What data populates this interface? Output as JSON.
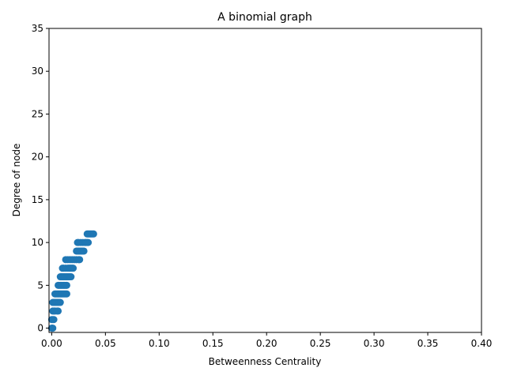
{
  "chart_data": {
    "type": "scatter",
    "title": "A binomial graph",
    "xlabel": "Betweenness Centrality",
    "ylabel": "Degree of node",
    "xlim": [
      -0.0025,
      0.4
    ],
    "ylim": [
      -0.5,
      35
    ],
    "xticks": [
      "0.00",
      "0.05",
      "0.10",
      "0.15",
      "0.20",
      "0.25",
      "0.30",
      "0.35",
      "0.40"
    ],
    "yticks": [
      "0",
      "5",
      "10",
      "15",
      "20",
      "25",
      "30",
      "35"
    ],
    "grid": false,
    "marker_color": "#1f77b4",
    "points": [
      [
        0.0,
        0
      ],
      [
        0.0005,
        0
      ],
      [
        0.001,
        0
      ],
      [
        0.0,
        1
      ],
      [
        0.001,
        1
      ],
      [
        0.002,
        1
      ],
      [
        0.001,
        2
      ],
      [
        0.002,
        2
      ],
      [
        0.003,
        2
      ],
      [
        0.005,
        2
      ],
      [
        0.006,
        2
      ],
      [
        0.001,
        3
      ],
      [
        0.002,
        3
      ],
      [
        0.003,
        3
      ],
      [
        0.004,
        3
      ],
      [
        0.005,
        3
      ],
      [
        0.006,
        3
      ],
      [
        0.007,
        3
      ],
      [
        0.008,
        3
      ],
      [
        0.003,
        4
      ],
      [
        0.004,
        4
      ],
      [
        0.005,
        4
      ],
      [
        0.006,
        4
      ],
      [
        0.007,
        4
      ],
      [
        0.008,
        4
      ],
      [
        0.009,
        4
      ],
      [
        0.01,
        4
      ],
      [
        0.011,
        4
      ],
      [
        0.012,
        4
      ],
      [
        0.013,
        4
      ],
      [
        0.014,
        4
      ],
      [
        0.006,
        5
      ],
      [
        0.007,
        5
      ],
      [
        0.008,
        5
      ],
      [
        0.009,
        5
      ],
      [
        0.01,
        5
      ],
      [
        0.011,
        5
      ],
      [
        0.012,
        5
      ],
      [
        0.013,
        5
      ],
      [
        0.014,
        5
      ],
      [
        0.008,
        6
      ],
      [
        0.009,
        6
      ],
      [
        0.01,
        6
      ],
      [
        0.011,
        6
      ],
      [
        0.012,
        6
      ],
      [
        0.013,
        6
      ],
      [
        0.014,
        6
      ],
      [
        0.015,
        6
      ],
      [
        0.016,
        6
      ],
      [
        0.017,
        6
      ],
      [
        0.018,
        6
      ],
      [
        0.01,
        7
      ],
      [
        0.011,
        7
      ],
      [
        0.013,
        7
      ],
      [
        0.015,
        7
      ],
      [
        0.016,
        7
      ],
      [
        0.017,
        7
      ],
      [
        0.018,
        7
      ],
      [
        0.019,
        7
      ],
      [
        0.02,
        7
      ],
      [
        0.013,
        8
      ],
      [
        0.015,
        8
      ],
      [
        0.017,
        8
      ],
      [
        0.019,
        8
      ],
      [
        0.021,
        8
      ],
      [
        0.023,
        8
      ],
      [
        0.025,
        8
      ],
      [
        0.026,
        8
      ],
      [
        0.023,
        9
      ],
      [
        0.024,
        9
      ],
      [
        0.025,
        9
      ],
      [
        0.026,
        9
      ],
      [
        0.027,
        9
      ],
      [
        0.028,
        9
      ],
      [
        0.029,
        9
      ],
      [
        0.03,
        9
      ],
      [
        0.024,
        10
      ],
      [
        0.025,
        10
      ],
      [
        0.027,
        10
      ],
      [
        0.029,
        10
      ],
      [
        0.031,
        10
      ],
      [
        0.032,
        10
      ],
      [
        0.033,
        10
      ],
      [
        0.034,
        10
      ],
      [
        0.033,
        11
      ],
      [
        0.034,
        11
      ],
      [
        0.035,
        11
      ],
      [
        0.036,
        11
      ],
      [
        0.037,
        11
      ],
      [
        0.038,
        11
      ],
      [
        0.039,
        11
      ]
    ]
  }
}
